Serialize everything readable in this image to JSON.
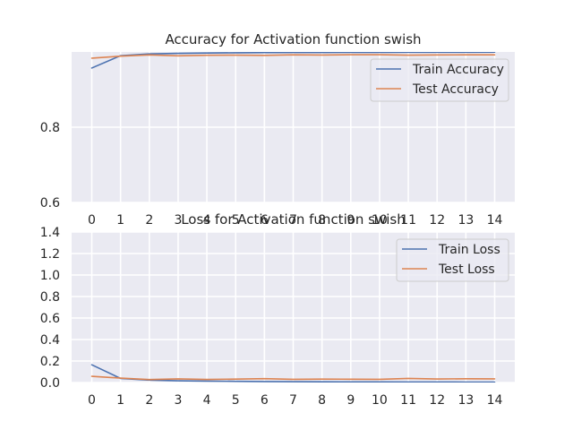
{
  "chart_data": [
    {
      "type": "line",
      "title": "Accuracy for Activation function swish",
      "xlabel": "",
      "ylabel": "",
      "x": [
        0,
        1,
        2,
        3,
        4,
        5,
        6,
        7,
        8,
        9,
        10,
        11,
        12,
        13,
        14
      ],
      "xlim": [
        -0.7,
        14.7
      ],
      "ylim": [
        0.6,
        1.0
      ],
      "yticks": [
        0.6,
        0.8
      ],
      "grid": true,
      "legend_position": "top-right",
      "series": [
        {
          "name": "Train Accuracy",
          "color": "#4c72b0",
          "values": [
            0.9573,
            0.9901,
            0.9947,
            0.9963,
            0.9972,
            0.9978,
            0.9982,
            0.9985,
            0.9987,
            0.9989,
            0.999,
            0.9991,
            0.9992,
            0.9993,
            0.9994
          ]
        },
        {
          "name": "Test Accuracy",
          "color": "#dd8452",
          "values": [
            0.9835,
            0.9888,
            0.9922,
            0.9898,
            0.9912,
            0.9915,
            0.9908,
            0.9925,
            0.9918,
            0.9926,
            0.9927,
            0.9916,
            0.9922,
            0.9923,
            0.9924
          ]
        }
      ]
    },
    {
      "type": "line",
      "title": "Loss for Activation function swish",
      "xlabel": "",
      "ylabel": "",
      "x": [
        0,
        1,
        2,
        3,
        4,
        5,
        6,
        7,
        8,
        9,
        10,
        11,
        12,
        13,
        14
      ],
      "xlim": [
        -0.7,
        14.7
      ],
      "ylim": [
        0.0,
        1.4
      ],
      "yticks": [
        0.0,
        0.2,
        0.4,
        0.6,
        0.8,
        1.0,
        1.2,
        1.4
      ],
      "grid": true,
      "legend_position": "top-right",
      "series": [
        {
          "name": "Train Loss",
          "color": "#4c72b0",
          "values": [
            0.165,
            0.038,
            0.022,
            0.016,
            0.013,
            0.011,
            0.009,
            0.008,
            0.007,
            0.006,
            0.006,
            0.005,
            0.005,
            0.004,
            0.004
          ]
        },
        {
          "name": "Test Loss",
          "color": "#dd8452",
          "values": [
            0.058,
            0.041,
            0.028,
            0.034,
            0.029,
            0.032,
            0.036,
            0.03,
            0.032,
            0.031,
            0.03,
            0.038,
            0.033,
            0.035,
            0.034
          ]
        }
      ]
    }
  ]
}
